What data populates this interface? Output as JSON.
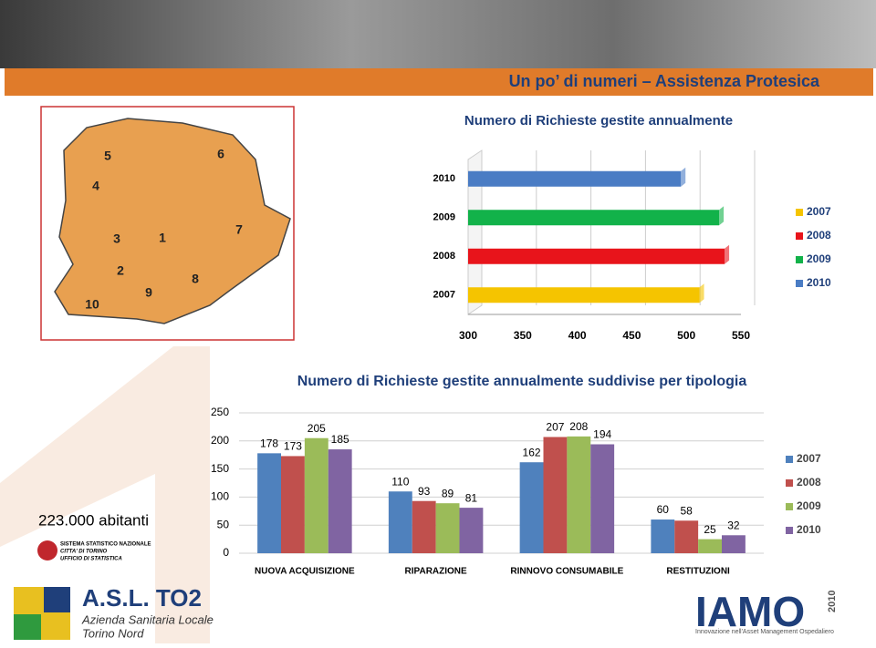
{
  "header": {
    "title": "Un po’ di numeri – Assistenza Protesica"
  },
  "map": {
    "labels": [
      "5",
      "6",
      "4",
      "3",
      "1",
      "7",
      "2",
      "8",
      "9",
      "10"
    ]
  },
  "population": "223.000 abitanti",
  "logos": {
    "istat": [
      "SISTEMA STATISTICO NAZIONALE",
      "CITTA' DI TORINO",
      "UFFICIO DI STATISTICA"
    ],
    "asl": [
      "A.S.L. TO2",
      "Azienda Sanitaria Locale",
      "Torino Nord"
    ],
    "iamo": [
      "IAMO",
      "2010",
      "Innovazione nell'Asset Management Ospedaliero"
    ]
  },
  "chart_data": [
    {
      "type": "hbar",
      "title": "Numero di Richieste gestite annualmente",
      "categories": [
        "2007",
        "2008",
        "2009",
        "2010"
      ],
      "values": [
        512,
        535,
        530,
        495
      ],
      "colors": [
        "#f5c400",
        "#e8141b",
        "#12b24a",
        "#4a7cc4"
      ],
      "xlim": [
        300,
        550
      ],
      "xticks": [
        300,
        350,
        400,
        450,
        500,
        550
      ],
      "grid": true,
      "legend": "right"
    },
    {
      "type": "grouped-bar",
      "title": "Numero di Richieste gestite annualmente suddivise per tipologia",
      "categories": [
        "NUOVA ACQUISIZIONE",
        "RIPARAZIONE",
        "RINNOVO CONSUMABILE",
        "RESTITUZIONI"
      ],
      "series": [
        {
          "name": "2007",
          "color": "#4f81bd",
          "values": [
            178,
            110,
            162,
            60
          ]
        },
        {
          "name": "2008",
          "color": "#c0504d",
          "values": [
            173,
            93,
            207,
            58
          ]
        },
        {
          "name": "2009",
          "color": "#9bbb59",
          "values": [
            205,
            89,
            208,
            25
          ]
        },
        {
          "name": "2010",
          "color": "#8064a2",
          "values": [
            185,
            81,
            194,
            32
          ]
        }
      ],
      "ylim": [
        0,
        250
      ],
      "yticks": [
        0,
        50,
        100,
        150,
        200,
        250
      ],
      "grid": true,
      "legend": "right"
    }
  ]
}
